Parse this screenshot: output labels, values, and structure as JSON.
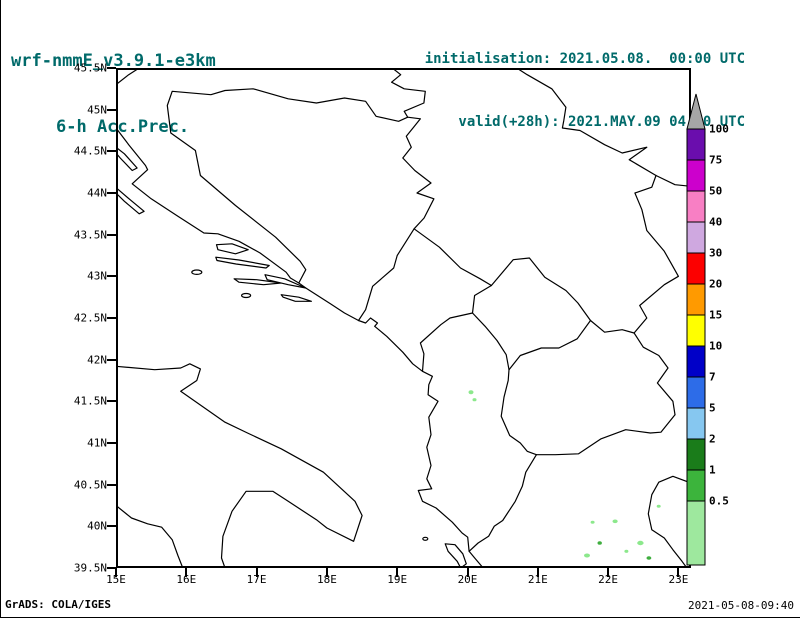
{
  "colors": {
    "header_text": "#006a6a",
    "map_line": "#000000",
    "precip": {
      "light": "#8ce88c",
      "medium": "#3fae3f"
    }
  },
  "header": {
    "model": "wrf-nmmE_v3.9.1-e3km",
    "product": "6-h Acc.Prec.",
    "init_label": "initialisation: 2021.05.08.  00:00 UTC",
    "valid_label": "valid(+28h): 2021.MAY.09 04:00 UTC"
  },
  "axes": {
    "lat_labels": [
      "45.5N",
      "45N",
      "44.5N",
      "44N",
      "43.5N",
      "43N",
      "42.5N",
      "42N",
      "41.5N",
      "41N",
      "40.5N",
      "40N",
      "39.5N"
    ],
    "lon_labels": [
      "15E",
      "16E",
      "17E",
      "18E",
      "19E",
      "20E",
      "21E",
      "22E",
      "23E"
    ]
  },
  "colorbar": {
    "levels": [
      "100",
      "75",
      "50",
      "40",
      "30",
      "20",
      "15",
      "10",
      "7",
      "5",
      "2",
      "1",
      "0.5"
    ],
    "colors_top_to_bottom": [
      "#a6a6a6",
      "#6a0dad",
      "#cc00cc",
      "#f87fc4",
      "#cfa8e0",
      "#fc0000",
      "#ff9a00",
      "#ffff00",
      "#0000c8",
      "#2d6ce8",
      "#86c7f0",
      "#1a7c1a",
      "#3cb43c",
      "#9ee89e"
    ]
  },
  "precip_marks": [
    {
      "lon": 20.05,
      "lat": 41.61,
      "rx": 2.5,
      "ry": 2.0,
      "shade": "light"
    },
    {
      "lon": 20.1,
      "lat": 41.52,
      "rx": 2.0,
      "ry": 1.6,
      "shade": "light"
    },
    {
      "lon": 21.7,
      "lat": 39.65,
      "rx": 3.0,
      "ry": 2.0,
      "shade": "light"
    },
    {
      "lon": 21.78,
      "lat": 40.05,
      "rx": 2.0,
      "ry": 1.5,
      "shade": "light"
    },
    {
      "lon": 21.88,
      "lat": 39.8,
      "rx": 2.2,
      "ry": 1.8,
      "shade": "medium"
    },
    {
      "lon": 22.1,
      "lat": 40.06,
      "rx": 2.6,
      "ry": 1.8,
      "shade": "light"
    },
    {
      "lon": 22.26,
      "lat": 39.7,
      "rx": 2.0,
      "ry": 1.6,
      "shade": "light"
    },
    {
      "lon": 22.46,
      "lat": 39.8,
      "rx": 3.2,
      "ry": 2.2,
      "shade": "light"
    },
    {
      "lon": 22.58,
      "lat": 39.62,
      "rx": 2.4,
      "ry": 1.8,
      "shade": "medium"
    },
    {
      "lon": 22.72,
      "lat": 40.24,
      "rx": 2.0,
      "ry": 1.5,
      "shade": "light"
    }
  ],
  "footer": {
    "grads_credit": "GrADS: COLA/IGES",
    "timestamp": "2021-05-08-09:40"
  }
}
